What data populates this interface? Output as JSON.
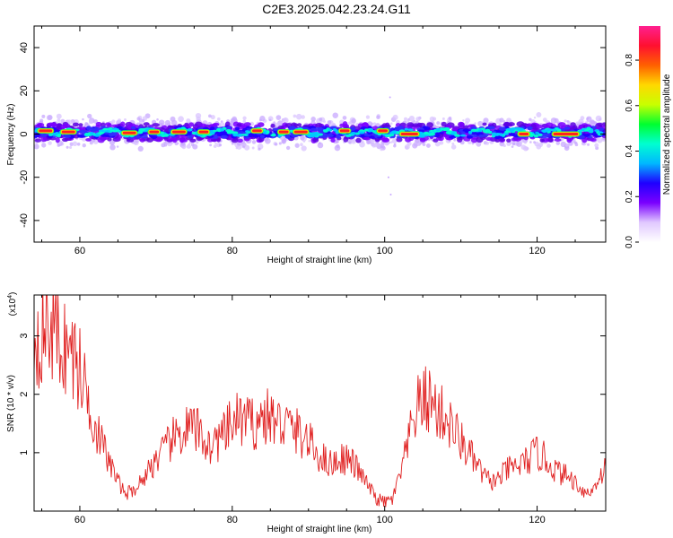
{
  "title": "C2E3.2025.042.23.24.G11",
  "chart_data": [
    {
      "type": "heatmap",
      "xlabel": "Height of straight line (km)",
      "ylabel": "Frequency (Hz)",
      "xlim": [
        54,
        129
      ],
      "ylim": [
        -50,
        50
      ],
      "xticks": [
        60,
        80,
        100,
        120
      ],
      "yticks": [
        -40,
        -20,
        0,
        20,
        40
      ],
      "colorbar": {
        "label": "Normalized spectral amplitude",
        "range": [
          0.0,
          0.95
        ],
        "ticks": [
          0.0,
          0.2,
          0.4,
          0.6,
          0.8
        ],
        "tick_labels": [
          "0.0",
          "0.2",
          "0.4",
          "0.6",
          "0.8"
        ],
        "colors": [
          "#ffffff",
          "#e0c8ff",
          "#7a00ff",
          "#1f00ff",
          "#00b8ff",
          "#00ffd0",
          "#00ff30",
          "#c8ff00",
          "#ffd800",
          "#ff6000",
          "#ff1030",
          "#ff2090"
        ]
      },
      "band": {
        "center_freq_hz": 0.8,
        "core_halfwidth_hz": 2,
        "spread_halfwidth_hz": 7,
        "strong_segments": [
          {
            "x": [
              54.5,
              56.5
            ],
            "f": 1.5
          },
          {
            "x": [
              57.5,
              59.5
            ],
            "f": 1.0
          },
          {
            "x": [
              65.5,
              67.5
            ],
            "f": 0.5
          },
          {
            "x": [
              69,
              70.5
            ],
            "f": 1.0
          },
          {
            "x": [
              72,
              74
            ],
            "f": 1.0
          },
          {
            "x": [
              75.5,
              77
            ],
            "f": 1.0
          },
          {
            "x": [
              82.5,
              84
            ],
            "f": 1.5
          },
          {
            "x": [
              86,
              87.5
            ],
            "f": 1.0
          },
          {
            "x": [
              88,
              90
            ],
            "f": 1.0
          },
          {
            "x": [
              94,
              95.5
            ],
            "f": 1.5
          },
          {
            "x": [
              99,
              100.5
            ],
            "f": 1.5
          },
          {
            "x": [
              102,
              104.5
            ],
            "f": 0.0
          },
          {
            "x": [
              117.5,
              119
            ],
            "f": 0.0
          },
          {
            "x": [
              122,
              125.5
            ],
            "f": 0.0
          }
        ]
      }
    },
    {
      "type": "line",
      "xlabel": "Height of straight line (km)",
      "ylabel": "SNR (10 * v/v)",
      "multiplier_label": "(x10",
      "multiplier_exp": "4",
      "xlim": [
        54,
        129
      ],
      "ylim": [
        0,
        3.7
      ],
      "xticks": [
        60,
        80,
        100,
        120
      ],
      "yticks": [
        1,
        2,
        3
      ],
      "color": "#e02020",
      "series": [
        {
          "x": [
            54,
            55,
            56,
            57,
            58,
            59,
            60,
            61,
            62,
            63,
            64,
            65,
            66,
            67,
            68,
            69,
            70,
            71,
            72,
            73,
            74,
            75,
            76,
            77,
            78,
            79,
            80,
            81,
            82,
            83,
            84,
            85,
            86,
            87,
            88,
            89,
            90,
            91,
            92,
            93,
            94,
            95,
            96,
            97,
            98,
            99,
            100,
            101,
            102,
            103,
            104,
            105,
            106,
            107,
            108,
            109,
            110,
            111,
            112,
            113,
            114,
            115,
            116,
            117,
            118,
            119,
            120,
            121,
            122,
            123,
            124,
            125,
            126,
            127,
            128,
            129
          ],
          "values": [
            3.0,
            3.1,
            3.2,
            3.0,
            2.8,
            2.7,
            2.4,
            2.0,
            1.5,
            1.1,
            0.8,
            0.5,
            0.3,
            0.35,
            0.5,
            0.7,
            0.9,
            1.0,
            1.2,
            1.3,
            1.4,
            1.4,
            1.3,
            1.1,
            1.2,
            1.3,
            1.5,
            1.6,
            1.5,
            1.5,
            1.6,
            1.6,
            1.5,
            1.5,
            1.4,
            1.3,
            1.2,
            1.0,
            0.9,
            0.8,
            0.9,
            0.9,
            0.8,
            0.6,
            0.4,
            0.2,
            0.15,
            0.2,
            0.6,
            1.1,
            1.7,
            1.9,
            1.9,
            1.7,
            1.6,
            1.4,
            1.2,
            1.0,
            0.8,
            0.6,
            0.5,
            0.55,
            0.7,
            0.75,
            0.8,
            0.9,
            1.0,
            0.9,
            0.75,
            0.65,
            0.6,
            0.5,
            0.35,
            0.3,
            0.55,
            0.75
          ]
        }
      ]
    }
  ]
}
